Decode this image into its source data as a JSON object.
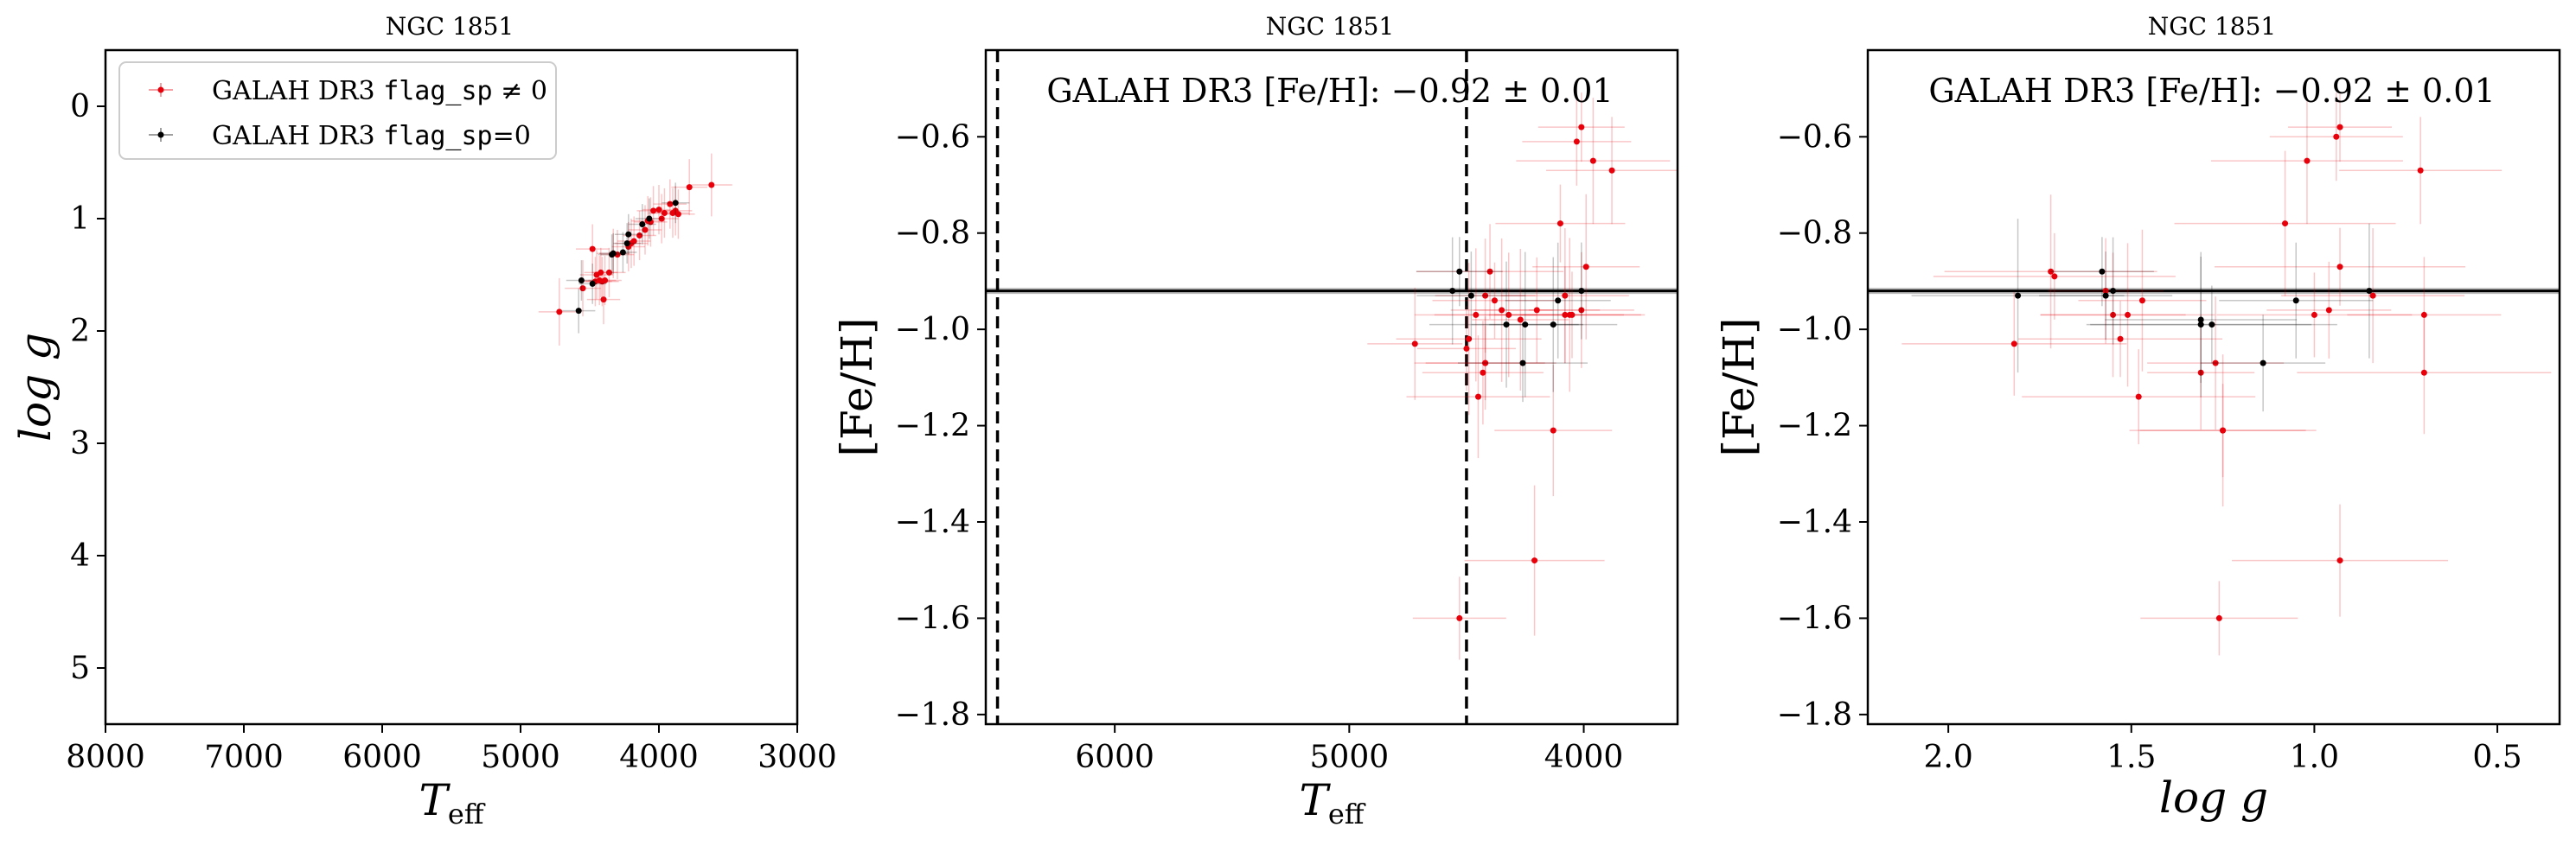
{
  "chart_data": [
    {
      "type": "scatter",
      "title": "NGC 1851",
      "xlabel": "T",
      "xlabel_sub": "eff",
      "ylabel": "log g",
      "xlim": [
        8000,
        3000
      ],
      "ylim": [
        -0.5,
        5.5
      ],
      "xticks": [
        8000,
        7000,
        6000,
        5000,
        4000,
        3000
      ],
      "yticks": [
        0,
        1,
        2,
        3,
        4,
        5
      ],
      "grid": false,
      "legend": {
        "placement": "top-left",
        "entries": [
          {
            "pre": "GALAH DR3 ",
            "mono": "flag_sp",
            "post": " ≠ 0",
            "color": "#e8000b"
          },
          {
            "pre": "GALAH DR3 ",
            "mono": "flag_sp",
            "post": "=0",
            "color": "#000000"
          }
        ]
      },
      "series": [
        {
          "color": "#e8000b",
          "x": [
            3620,
            3780,
            3860,
            3880,
            3900,
            3920,
            3960,
            3980,
            4000,
            4040,
            4060,
            4080,
            4100,
            4140,
            4180,
            4200,
            4220,
            4300,
            4330,
            4360,
            4390,
            4400,
            4410,
            4420,
            4430,
            4450,
            4460,
            4480,
            4550,
            4720
          ],
          "y": [
            0.7,
            0.72,
            0.96,
            0.93,
            0.95,
            0.87,
            0.95,
            1.0,
            0.92,
            0.93,
            1.03,
            1.02,
            1.1,
            1.15,
            1.2,
            1.22,
            1.25,
            1.32,
            1.31,
            1.48,
            1.55,
            1.72,
            1.56,
            1.48,
            1.55,
            1.5,
            1.56,
            1.27,
            1.62,
            1.83
          ],
          "xerr": [
            150,
            130,
            120,
            120,
            120,
            120,
            120,
            120,
            120,
            120,
            120,
            120,
            120,
            120,
            120,
            120,
            120,
            120,
            120,
            120,
            120,
            120,
            120,
            120,
            120,
            120,
            120,
            120,
            130,
            150
          ],
          "yerr": [
            0.28,
            0.25,
            0.22,
            0.22,
            0.22,
            0.22,
            0.22,
            0.22,
            0.22,
            0.22,
            0.22,
            0.22,
            0.22,
            0.22,
            0.22,
            0.22,
            0.22,
            0.22,
            0.22,
            0.22,
            0.22,
            0.22,
            0.22,
            0.22,
            0.22,
            0.22,
            0.22,
            0.22,
            0.25,
            0.3
          ]
        },
        {
          "color": "#000000",
          "x": [
            3880,
            4070,
            4120,
            4220,
            4230,
            4260,
            4330,
            4340,
            4480,
            4560,
            4580
          ],
          "y": [
            0.86,
            1.0,
            1.05,
            1.14,
            1.22,
            1.3,
            1.31,
            1.32,
            1.58,
            1.55,
            1.82
          ],
          "xerr": [
            100,
            100,
            100,
            100,
            100,
            100,
            100,
            100,
            100,
            110,
            120
          ],
          "yerr": [
            0.18,
            0.18,
            0.18,
            0.18,
            0.18,
            0.18,
            0.18,
            0.18,
            0.18,
            0.18,
            0.2
          ]
        }
      ]
    },
    {
      "type": "scatter",
      "title": "NGC 1851",
      "xlabel": "T",
      "xlabel_sub": "eff",
      "ylabel": "[Fe/H]",
      "xlim": [
        6550,
        3600
      ],
      "ylim": [
        -1.82,
        -0.42
      ],
      "xticks": [
        6000,
        5000,
        4000
      ],
      "yticks": [
        -0.6,
        -0.8,
        -1.0,
        -1.2,
        -1.4,
        -1.6,
        -1.8
      ],
      "grid": false,
      "annotation": "GALAH DR3 [Fe/H]: −0.92 ± 0.01",
      "hline": -0.92,
      "vlines": [
        6500,
        4500
      ],
      "series": [
        {
          "color": "#e8000b",
          "x": [
            4010,
            4030,
            3880,
            3960,
            3990,
            4100,
            4080,
            4010,
            4080,
            4060,
            4050,
            4200,
            4320,
            4350,
            4380,
            4400,
            4420,
            4460,
            4490,
            4500,
            4430,
            4450,
            4270,
            4420,
            4420,
            4720,
            4130,
            4210,
            4530
          ],
          "y": [
            -0.58,
            -0.61,
            -0.67,
            -0.65,
            -0.87,
            -0.78,
            -0.97,
            -0.96,
            -0.93,
            -0.97,
            -0.97,
            -0.96,
            -0.97,
            -0.96,
            -0.94,
            -0.88,
            -0.93,
            -0.97,
            -1.02,
            -1.04,
            -1.09,
            -1.14,
            -0.98,
            -1.07,
            -1.07,
            -1.03,
            -1.21,
            -1.48,
            -1.6
          ]
        },
        {
          "color": "#000000",
          "x": [
            4530,
            4480,
            4560,
            4330,
            4250,
            4260,
            4010,
            4110,
            4130
          ],
          "y": [
            -0.88,
            -0.93,
            -0.92,
            -0.99,
            -0.99,
            -1.07,
            -0.92,
            -0.94,
            -0.99
          ]
        }
      ]
    },
    {
      "type": "scatter",
      "title": "NGC 1851",
      "xlabel": "log g",
      "ylabel": "[Fe/H]",
      "xlim": [
        2.22,
        0.33
      ],
      "ylim": [
        -1.82,
        -0.42
      ],
      "xticks": [
        2.0,
        1.5,
        1.0,
        0.5
      ],
      "xtick_labels": [
        "2.0",
        "1.5",
        "1.0",
        "0.5"
      ],
      "yticks": [
        -0.6,
        -0.8,
        -1.0,
        -1.2,
        -1.4,
        -1.6,
        -1.8
      ],
      "grid": false,
      "annotation": "GALAH DR3 [Fe/H]: −0.92 ± 0.01",
      "hline": -0.92,
      "series": [
        {
          "color": "#e8000b",
          "x": [
            0.93,
            0.94,
            0.71,
            1.02,
            1.08,
            0.93,
            0.96,
            0.7,
            0.84,
            1.72,
            1.71,
            1.57,
            1.55,
            1.51,
            1.53,
            1.48,
            1.31,
            1.27,
            1.25,
            1.0,
            1.82,
            0.7,
            1.47,
            1.26,
            1.25,
            0.93
          ],
          "y": [
            -0.58,
            -0.6,
            -0.67,
            -0.65,
            -0.78,
            -0.87,
            -0.96,
            -0.97,
            -0.93,
            -0.88,
            -0.89,
            -0.92,
            -0.97,
            -0.97,
            -1.02,
            -1.14,
            -1.09,
            -1.07,
            -1.21,
            -0.97,
            -1.03,
            -1.09,
            -0.94,
            -1.6,
            -1.21,
            -1.48
          ]
        },
        {
          "color": "#000000",
          "x": [
            1.58,
            1.57,
            1.55,
            1.31,
            1.31,
            1.28,
            1.14,
            1.05,
            0.85,
            1.81
          ],
          "y": [
            -0.88,
            -0.93,
            -0.92,
            -0.98,
            -0.99,
            -0.99,
            -1.07,
            -0.94,
            -0.92,
            -0.93
          ]
        }
      ]
    }
  ]
}
